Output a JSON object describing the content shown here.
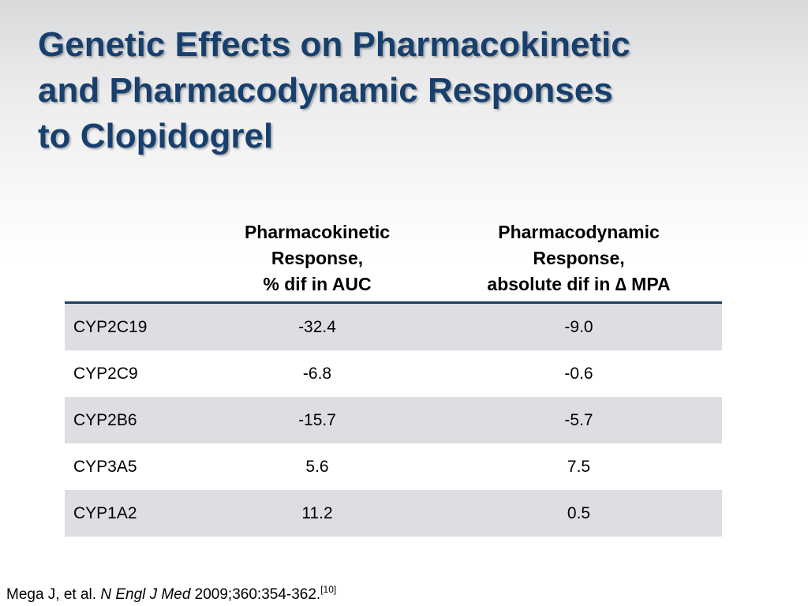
{
  "slide": {
    "title_lines": [
      "Genetic Effects on Pharmacokinetic",
      "and Pharmacodynamic Responses",
      "to Clopidogrel"
    ],
    "title_color": "#17406e"
  },
  "table": {
    "headers": {
      "gene": "",
      "pk": [
        "Pharmacokinetic",
        "Response,",
        "% dif in AUC"
      ],
      "pd": [
        "Pharmacodynamic",
        "Response,",
        "absolute dif in ∆ MPA"
      ]
    },
    "rows": [
      {
        "gene": "CYP2C19",
        "pk": "-32.4",
        "pd": "-9.0"
      },
      {
        "gene": "CYP2C9",
        "pk": "-6.8",
        "pd": "-0.6"
      },
      {
        "gene": "CYP2B6",
        "pk": "-15.7",
        "pd": "-5.7"
      },
      {
        "gene": "CYP3A5",
        "pk": "5.6",
        "pd": "7.5"
      },
      {
        "gene": "CYP1A2",
        "pk": "11.2",
        "pd": "0.5"
      }
    ],
    "shaded_row_color": "#dcdee2",
    "header_rule_color": "#1e3f63"
  },
  "citation": {
    "authors": "Mega J, et al. ",
    "journal": "N Engl J Med",
    "details": " 2009;360:354-362.",
    "ref": "[10]"
  }
}
